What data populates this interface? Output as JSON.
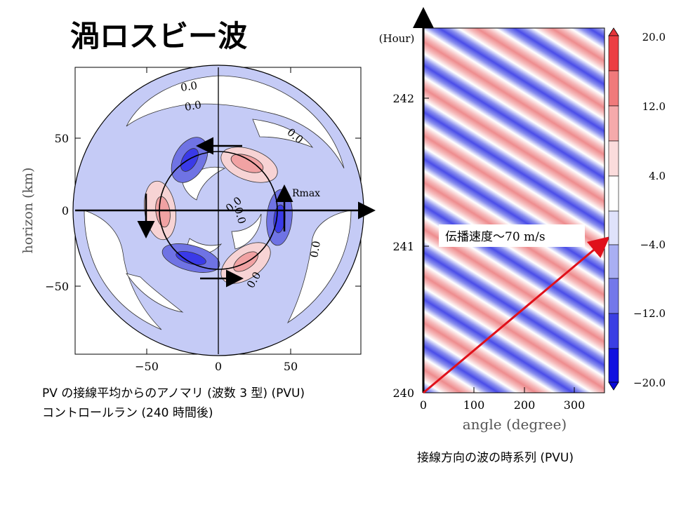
{
  "title": "渦ロスビー波",
  "left_caption": {
    "line1": "PV の接線平均からのアノマリ (波数 3 型) (PVU)",
    "line2": "コントロールラン (240 時間後)"
  },
  "right_caption": "接線方向の波の時系列 (PVU)",
  "colors": {
    "neg_strong": "#3a3ae8",
    "neg_mid": "#6f73e4",
    "neg_weak": "#c5cbf6",
    "pos_weak": "#f7d3d4",
    "pos_mid": "#f1a2a3",
    "pos_strong": "#e45a5c",
    "arrow_red": "#e0101a"
  },
  "chart_data": [
    {
      "type": "contour",
      "description_shown": "polar PV anomaly field",
      "ylabel": "horizon (km)",
      "xlabel": "",
      "xlim": [
        -95,
        95
      ],
      "ylim": [
        -95,
        95
      ],
      "x_ticks": [
        "−50",
        "0",
        "50"
      ],
      "y_ticks": [
        "50",
        "0",
        "−50"
      ],
      "contour_labels": [
        "0.0",
        "0.0",
        "0.0",
        "0.0",
        "0.0",
        "0.0",
        "0.0"
      ],
      "annotation": "Rmax",
      "wave_number": 3
    },
    {
      "type": "heatmap",
      "xlabel": "angle (degree)",
      "ylabel_unit": "(Hour)",
      "x_ticks": [
        "0",
        "100",
        "200",
        "300"
      ],
      "xlim": [
        0,
        360
      ],
      "y_ticks": [
        "240",
        "241",
        "242"
      ],
      "ylim": [
        240,
        242.45
      ],
      "annotation": "伝播速度～70 m/s",
      "colorbar": {
        "labels": [
          "20.0",
          "12.0",
          "4.0",
          "−4.0",
          "−12.0",
          "−20.0"
        ],
        "levels": [
          -20,
          -16,
          -12,
          -8,
          -4,
          0,
          4,
          8,
          12,
          16,
          20
        ]
      }
    }
  ]
}
